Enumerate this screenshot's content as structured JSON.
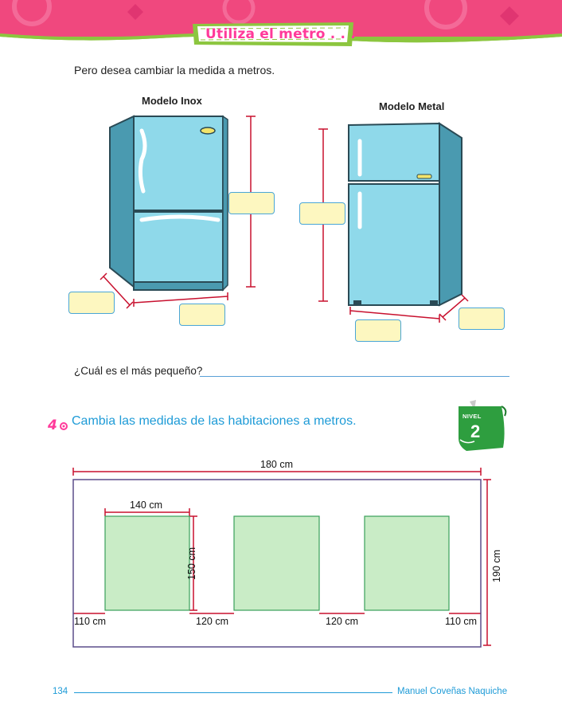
{
  "header": {
    "title": "Utiliza el metro . . ."
  },
  "intro_text": "Pero desea cambiar la medida a metros.",
  "fridges": [
    {
      "label": "Modelo Inox"
    },
    {
      "label": "Modelo Metal"
    }
  ],
  "question": {
    "text": "¿Cuál es el más pequeño?"
  },
  "exercise": {
    "number": "4",
    "text": "Cambia las medidas de las habitaciones a metros."
  },
  "level_badge": {
    "label": "NIVEL",
    "number": "2"
  },
  "room_plan": {
    "total_width": "180 cm",
    "total_height": "190 cm",
    "inner_width": "140 cm",
    "inner_height": "150 cm",
    "gaps": [
      "110 cm",
      "120 cm",
      "120 cm",
      "110 cm"
    ]
  },
  "footer": {
    "page_number": "134",
    "author": "Manuel Coveñas Naquiche"
  },
  "colors": {
    "banner": "#f0487e",
    "accent_blue": "#1e9bd7",
    "fridge": "#8fd9ea",
    "room_fill": "#c9ecc6",
    "dimension_red": "#c8102e"
  }
}
